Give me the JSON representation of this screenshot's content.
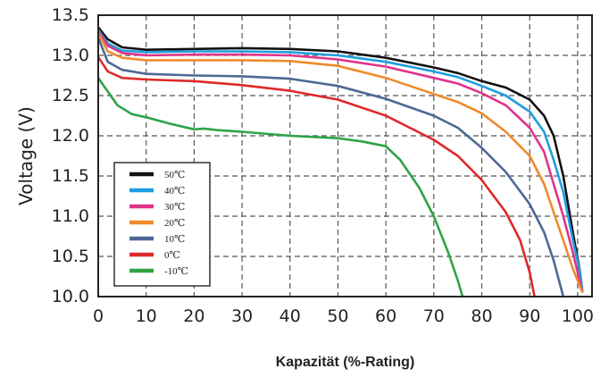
{
  "chart_data": {
    "type": "line",
    "title": "",
    "xlabel": "Kapazität (%-Rating)",
    "ylabel": "Voltage (V)",
    "xlim": [
      0,
      103
    ],
    "ylim": [
      10.0,
      13.5
    ],
    "x_ticks": [
      "0",
      "10",
      "20",
      "30",
      "40",
      "50",
      "60",
      "70",
      "80",
      "90",
      "100"
    ],
    "y_ticks": [
      "10.0",
      "10.5",
      "11.0",
      "11.5",
      "12.0",
      "12.5",
      "13.0",
      "13.5"
    ],
    "grid": true,
    "legend_position": "bottom-left",
    "series": [
      {
        "name": "50℃",
        "color": "#111111",
        "points": [
          [
            0,
            13.35
          ],
          [
            2,
            13.2
          ],
          [
            5,
            13.1
          ],
          [
            10,
            13.07
          ],
          [
            20,
            13.08
          ],
          [
            30,
            13.09
          ],
          [
            40,
            13.08
          ],
          [
            50,
            13.05
          ],
          [
            60,
            12.97
          ],
          [
            70,
            12.85
          ],
          [
            75,
            12.78
          ],
          [
            80,
            12.68
          ],
          [
            85,
            12.6
          ],
          [
            90,
            12.45
          ],
          [
            93,
            12.25
          ],
          [
            95,
            12.0
          ],
          [
            97,
            11.5
          ],
          [
            99,
            10.8
          ],
          [
            100.5,
            10.3
          ],
          [
            101,
            10.05
          ]
        ]
      },
      {
        "name": "40℃",
        "color": "#1f9ee0",
        "points": [
          [
            0,
            13.32
          ],
          [
            2,
            13.15
          ],
          [
            5,
            13.06
          ],
          [
            10,
            13.04
          ],
          [
            20,
            13.05
          ],
          [
            30,
            13.05
          ],
          [
            40,
            13.04
          ],
          [
            50,
            13.0
          ],
          [
            60,
            12.92
          ],
          [
            70,
            12.8
          ],
          [
            75,
            12.73
          ],
          [
            80,
            12.62
          ],
          [
            85,
            12.5
          ],
          [
            90,
            12.3
          ],
          [
            93,
            12.05
          ],
          [
            95,
            11.7
          ],
          [
            97,
            11.3
          ],
          [
            99,
            10.7
          ],
          [
            100.5,
            10.3
          ],
          [
            101,
            10.05
          ]
        ]
      },
      {
        "name": "30℃",
        "color": "#e0338a",
        "points": [
          [
            0,
            13.3
          ],
          [
            2,
            13.12
          ],
          [
            5,
            13.03
          ],
          [
            10,
            13.0
          ],
          [
            20,
            13.01
          ],
          [
            30,
            13.01
          ],
          [
            40,
            13.0
          ],
          [
            50,
            12.95
          ],
          [
            60,
            12.86
          ],
          [
            70,
            12.72
          ],
          [
            75,
            12.65
          ],
          [
            80,
            12.53
          ],
          [
            85,
            12.38
          ],
          [
            90,
            12.1
          ],
          [
            93,
            11.8
          ],
          [
            95,
            11.4
          ],
          [
            97,
            11.0
          ],
          [
            99,
            10.55
          ],
          [
            101,
            10.05
          ]
        ]
      },
      {
        "name": "20℃",
        "color": "#f08a2a",
        "points": [
          [
            0,
            13.28
          ],
          [
            2,
            13.05
          ],
          [
            5,
            12.97
          ],
          [
            10,
            12.94
          ],
          [
            20,
            12.94
          ],
          [
            30,
            12.94
          ],
          [
            40,
            12.93
          ],
          [
            50,
            12.87
          ],
          [
            60,
            12.72
          ],
          [
            70,
            12.52
          ],
          [
            75,
            12.42
          ],
          [
            80,
            12.28
          ],
          [
            85,
            12.05
          ],
          [
            90,
            11.75
          ],
          [
            93,
            11.4
          ],
          [
            95,
            11.05
          ],
          [
            97,
            10.7
          ],
          [
            99,
            10.35
          ],
          [
            101,
            10.05
          ]
        ]
      },
      {
        "name": "10℃",
        "color": "#4d6894",
        "points": [
          [
            0,
            13.22
          ],
          [
            2,
            12.92
          ],
          [
            5,
            12.82
          ],
          [
            10,
            12.77
          ],
          [
            20,
            12.75
          ],
          [
            30,
            12.74
          ],
          [
            40,
            12.71
          ],
          [
            50,
            12.62
          ],
          [
            60,
            12.46
          ],
          [
            70,
            12.25
          ],
          [
            75,
            12.1
          ],
          [
            80,
            11.85
          ],
          [
            85,
            11.55
          ],
          [
            90,
            11.15
          ],
          [
            93,
            10.8
          ],
          [
            95,
            10.45
          ],
          [
            97,
            10.0
          ]
        ]
      },
      {
        "name": "0℃",
        "color": "#e02828",
        "points": [
          [
            0,
            12.98
          ],
          [
            2,
            12.8
          ],
          [
            5,
            12.72
          ],
          [
            10,
            12.7
          ],
          [
            20,
            12.68
          ],
          [
            30,
            12.63
          ],
          [
            40,
            12.56
          ],
          [
            50,
            12.45
          ],
          [
            60,
            12.25
          ],
          [
            70,
            11.95
          ],
          [
            75,
            11.75
          ],
          [
            80,
            11.45
          ],
          [
            85,
            11.05
          ],
          [
            88,
            10.7
          ],
          [
            90,
            10.3
          ],
          [
            91,
            10.0
          ]
        ]
      },
      {
        "name": "-10℃",
        "color": "#2ea347",
        "points": [
          [
            0,
            12.72
          ],
          [
            2,
            12.55
          ],
          [
            4,
            12.38
          ],
          [
            7,
            12.27
          ],
          [
            10,
            12.23
          ],
          [
            15,
            12.15
          ],
          [
            20,
            12.08
          ],
          [
            22,
            12.09
          ],
          [
            25,
            12.07
          ],
          [
            30,
            12.05
          ],
          [
            40,
            12.0
          ],
          [
            50,
            11.97
          ],
          [
            55,
            11.93
          ],
          [
            60,
            11.87
          ],
          [
            63,
            11.7
          ],
          [
            67,
            11.35
          ],
          [
            70,
            11.0
          ],
          [
            73,
            10.55
          ],
          [
            75,
            10.2
          ],
          [
            76,
            10.0
          ]
        ]
      }
    ]
  }
}
